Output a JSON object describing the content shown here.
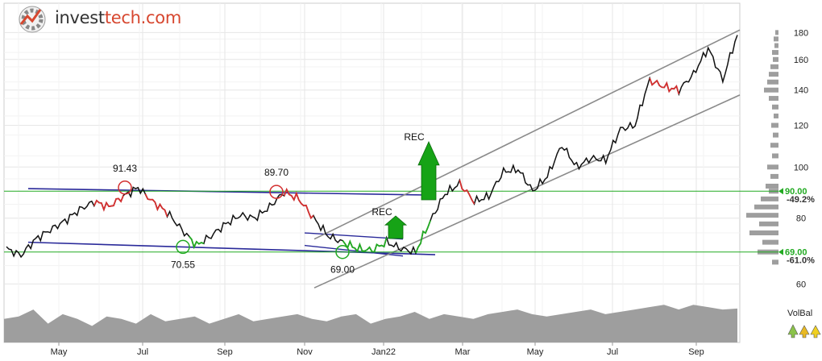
{
  "logo": {
    "prefix": "invest",
    "suffix": "tech.com",
    "icon": "investtech-logo-icon"
  },
  "volbal": {
    "label": "VolBal",
    "icons": [
      "up-arrow-icon",
      "neutral-arrow-icon",
      "neutral-arrow-icon"
    ]
  },
  "chart_data": {
    "type": "line",
    "x_ticks": [
      "May",
      "Jul",
      "Sep",
      "Nov",
      "Jan22",
      "Mar",
      "May",
      "Jul",
      "Sep"
    ],
    "y_ticks": [
      60,
      80,
      100,
      120,
      140,
      160,
      180
    ],
    "ylim": [
      56,
      188
    ],
    "log_scale": true,
    "grid": true,
    "annotations": [
      {
        "text": "91.43",
        "value": 91.43,
        "kind": "top"
      },
      {
        "text": "89.70",
        "value": 89.7,
        "kind": "top"
      },
      {
        "text": "70.55",
        "value": 70.55,
        "kind": "bottom"
      },
      {
        "text": "69.00",
        "value": 69.0,
        "kind": "bottom"
      },
      {
        "text": "REC",
        "kind": "signal-buy"
      },
      {
        "text": "REC",
        "kind": "signal-buy"
      }
    ],
    "levels": [
      {
        "value": 90.0,
        "label": "90.00",
        "pct": "-49.2%",
        "color": "#22aa22"
      },
      {
        "value": 69.0,
        "label": "69.00",
        "pct": "-61.0%",
        "color": "#22aa22"
      }
    ],
    "price_series": {
      "name": "",
      "x": [
        0,
        0.02,
        0.04,
        0.06,
        0.08,
        0.1,
        0.12,
        0.14,
        0.16,
        0.18,
        0.2,
        0.22,
        0.24,
        0.26,
        0.28,
        0.3,
        0.32,
        0.34,
        0.36,
        0.38,
        0.4,
        0.42,
        0.44,
        0.46,
        0.48,
        0.5,
        0.52,
        0.54,
        0.56,
        0.58,
        0.6,
        0.62,
        0.64,
        0.66,
        0.68,
        0.7,
        0.72,
        0.74,
        0.76,
        0.78,
        0.8,
        0.82,
        0.84,
        0.86,
        0.88,
        0.9,
        0.92,
        0.94,
        0.96,
        0.98,
        1.0
      ],
      "values": [
        70,
        68,
        73,
        76,
        79,
        83,
        86,
        84,
        88,
        91.4,
        86,
        82,
        76,
        71,
        74,
        78,
        81,
        80,
        84,
        89.7,
        87,
        80,
        74,
        72,
        70,
        69.5,
        72,
        70,
        69,
        79,
        89,
        93,
        86,
        88,
        98,
        99,
        90,
        96,
        110,
        100,
        104,
        103,
        118,
        120,
        146,
        142,
        140,
        150,
        168,
        146,
        178
      ]
    },
    "volume_profile": [
      {
        "price": 180,
        "w": 4
      },
      {
        "price": 175,
        "w": 6
      },
      {
        "price": 170,
        "w": 5
      },
      {
        "price": 165,
        "w": 8
      },
      {
        "price": 160,
        "w": 7
      },
      {
        "price": 155,
        "w": 10
      },
      {
        "price": 150,
        "w": 12
      },
      {
        "price": 145,
        "w": 14
      },
      {
        "price": 140,
        "w": 18
      },
      {
        "price": 135,
        "w": 12
      },
      {
        "price": 130,
        "w": 8
      },
      {
        "price": 125,
        "w": 6
      },
      {
        "price": 120,
        "w": 9
      },
      {
        "price": 115,
        "w": 7
      },
      {
        "price": 110,
        "w": 10
      },
      {
        "price": 105,
        "w": 8
      },
      {
        "price": 100,
        "w": 14
      },
      {
        "price": 96,
        "w": 10
      },
      {
        "price": 92,
        "w": 16
      },
      {
        "price": 90,
        "w": 12
      },
      {
        "price": 87,
        "w": 22
      },
      {
        "price": 84,
        "w": 30
      },
      {
        "price": 81,
        "w": 40
      },
      {
        "price": 78,
        "w": 24
      },
      {
        "price": 75,
        "w": 36
      },
      {
        "price": 72,
        "w": 20
      },
      {
        "price": 69,
        "w": 26
      },
      {
        "price": 66,
        "w": 8
      }
    ],
    "volbal_series": [
      0.5,
      0.55,
      0.7,
      0.4,
      0.6,
      0.5,
      0.35,
      0.55,
      0.5,
      0.4,
      0.6,
      0.45,
      0.5,
      0.55,
      0.4,
      0.5,
      0.6,
      0.45,
      0.5,
      0.55,
      0.6,
      0.5,
      0.45,
      0.55,
      0.6,
      0.4,
      0.5,
      0.55,
      0.65,
      0.5,
      0.6,
      0.55,
      0.5,
      0.6,
      0.65,
      0.7,
      0.6,
      0.55,
      0.6,
      0.65,
      0.7,
      0.6,
      0.65,
      0.7,
      0.75,
      0.8,
      0.7,
      0.8,
      0.75,
      0.7,
      0.72
    ]
  }
}
